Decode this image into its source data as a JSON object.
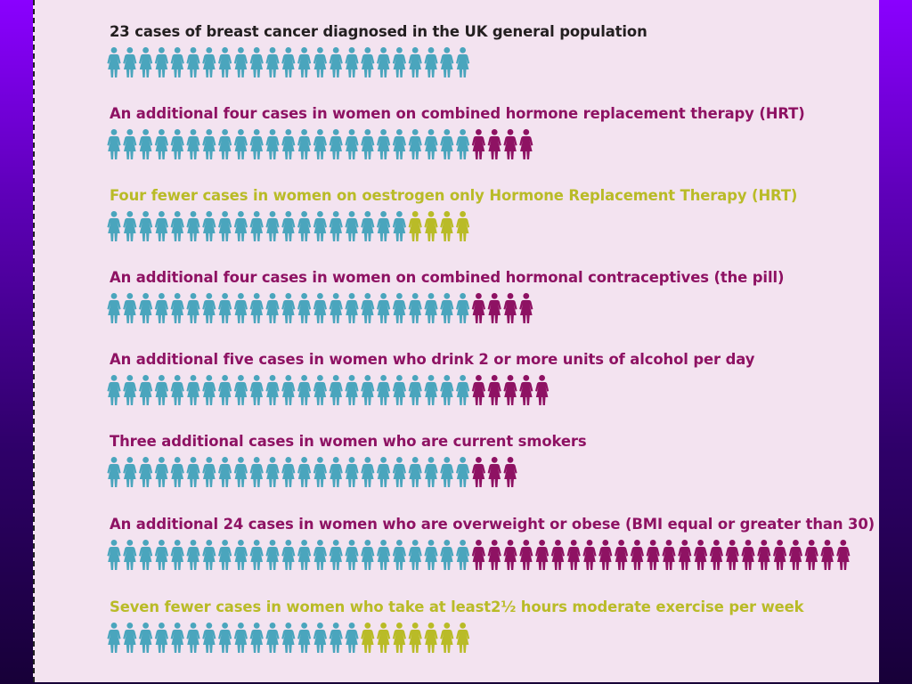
{
  "colors": {
    "baseline": "#4aa5bd",
    "increase": "#8e1263",
    "decrease": "#b9bb27",
    "title_dark": "#231f20"
  },
  "chart_data": {
    "type": "pictogram",
    "unit": "cases",
    "rows": [
      {
        "label": "23 cases of breast cancer diagnosed in the UK general population",
        "label_style": "dark",
        "baseline": 23,
        "change_kind": "none",
        "change": 0
      },
      {
        "label": "An additional four cases in women on combined hormone replacement therapy (HRT)",
        "label_style": "increase",
        "baseline": 23,
        "change_kind": "increase",
        "change": 4
      },
      {
        "label": "Four fewer  cases in women on oestrogen only Hormone Replacement Therapy (HRT)",
        "label_style": "decrease",
        "baseline": 23,
        "change_kind": "decrease",
        "change": 4
      },
      {
        "label": "An additional four cases in women on combined hormonal contraceptives (the pill)",
        "label_style": "increase",
        "baseline": 23,
        "change_kind": "increase",
        "change": 4
      },
      {
        "label": "An additional five cases in women who drink 2 or more units of alcohol per day",
        "label_style": "increase",
        "baseline": 23,
        "change_kind": "increase",
        "change": 5
      },
      {
        "label": "Three additional cases in women who are current smokers",
        "label_style": "increase",
        "baseline": 23,
        "change_kind": "increase",
        "change": 3
      },
      {
        "label": "An additional 24 cases in women who are overweight or obese (BMI equal or greater than 30)",
        "label_style": "increase",
        "baseline": 23,
        "change_kind": "increase",
        "change": 24
      },
      {
        "label": "Seven fewer cases in women who take at least2½ hours moderate exercise per week",
        "label_style": "decrease",
        "baseline": 23,
        "change_kind": "decrease",
        "change": 7
      }
    ]
  }
}
